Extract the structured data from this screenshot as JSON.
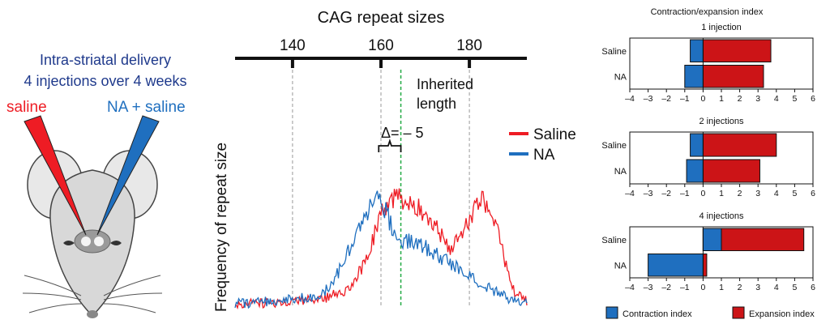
{
  "left_panel": {
    "title_line1": "Intra-striatal delivery",
    "title_line2": "4 injections over 4 weeks",
    "saline_label": "saline",
    "na_label": "NA + saline",
    "colors": {
      "title": "#1f3a8c",
      "saline": "#ee1c24",
      "na": "#1f6fbf"
    }
  },
  "chart_data": [
    {
      "type": "line",
      "title": "CAG repeat sizes",
      "ylabel": "Frequency of repeat size",
      "xlim": [
        127,
        193
      ],
      "ylim": [
        0,
        1
      ],
      "ticks": [
        140,
        160,
        180
      ],
      "tick_labels": [
        "140",
        "160",
        "180"
      ],
      "reference_lines": [
        {
          "x": 140,
          "color": "#999999"
        },
        {
          "x": 160,
          "color": "#999999"
        },
        {
          "x": 180,
          "color": "#999999"
        },
        {
          "x": 164.5,
          "color": "#22aa44",
          "label_line1": "Inherited",
          "label_line2": "length"
        }
      ],
      "delta_label": "Δ= – 5",
      "delta_range": [
        159.5,
        164.5
      ],
      "legend": {
        "placement": "top-right"
      },
      "series": [
        {
          "name": "Saline",
          "color": "#ee1c24",
          "x": [
            127,
            130,
            134,
            138,
            141,
            144,
            147,
            150,
            152,
            154,
            156,
            158,
            159,
            160,
            161,
            162,
            163,
            164,
            165,
            166,
            167,
            168,
            169,
            170,
            171,
            172,
            173,
            174,
            175,
            176,
            177,
            178,
            179,
            180,
            181,
            182,
            183,
            184,
            185,
            186,
            187,
            188,
            189,
            190,
            192,
            193
          ],
          "y": [
            0.02,
            0.03,
            0.03,
            0.04,
            0.05,
            0.05,
            0.06,
            0.09,
            0.12,
            0.18,
            0.28,
            0.42,
            0.52,
            0.6,
            0.66,
            0.68,
            0.7,
            0.72,
            0.71,
            0.7,
            0.69,
            0.66,
            0.64,
            0.61,
            0.58,
            0.55,
            0.5,
            0.46,
            0.41,
            0.39,
            0.42,
            0.46,
            0.52,
            0.58,
            0.64,
            0.68,
            0.69,
            0.68,
            0.63,
            0.55,
            0.43,
            0.31,
            0.2,
            0.11,
            0.06,
            0.04
          ]
        },
        {
          "name": "NA",
          "color": "#1f6fbf",
          "x": [
            127,
            130,
            134,
            138,
            141,
            144,
            147,
            149,
            151,
            153,
            155,
            157,
            158,
            159,
            160,
            161,
            162,
            163,
            164,
            165,
            166,
            167,
            168,
            169,
            170,
            172,
            174,
            176,
            178,
            180,
            182,
            184,
            186,
            188,
            190,
            193
          ],
          "y": [
            0.03,
            0.03,
            0.04,
            0.05,
            0.06,
            0.07,
            0.1,
            0.16,
            0.26,
            0.4,
            0.52,
            0.62,
            0.68,
            0.7,
            0.69,
            0.63,
            0.56,
            0.5,
            0.46,
            0.44,
            0.43,
            0.42,
            0.41,
            0.4,
            0.39,
            0.36,
            0.32,
            0.28,
            0.24,
            0.2,
            0.16,
            0.13,
            0.1,
            0.07,
            0.05,
            0.04
          ]
        }
      ]
    },
    {
      "type": "bar",
      "orientation": "horizontal",
      "title": "Contraction/expansion index",
      "xlim": [
        -4,
        6
      ],
      "ticks": [
        -4,
        -3,
        -2,
        -1,
        0,
        1,
        2,
        3,
        4,
        5,
        6
      ],
      "tick_labels": [
        "–4",
        "–3",
        "–2",
        "–1",
        "0",
        "1",
        "2",
        "3",
        "4",
        "5",
        "6"
      ],
      "categories": [
        "Saline",
        "NA"
      ],
      "panels": [
        {
          "title": "1 injection",
          "contraction": [
            -0.7,
            -1.0
          ],
          "expansion": [
            3.7,
            3.3
          ]
        },
        {
          "title": "2 injections",
          "contraction": [
            -0.7,
            -0.9
          ],
          "expansion": [
            4.0,
            3.1
          ]
        },
        {
          "title": "4 injections",
          "contraction": [
            1.0,
            -3.0
          ],
          "expansion": [
            5.5,
            0.2
          ]
        }
      ],
      "legend": {
        "placement": "bottom",
        "items": [
          {
            "name": "Contraction index",
            "color": "#1f6fbf"
          },
          {
            "name": "Expansion index",
            "color": "#cc1417"
          }
        ]
      }
    }
  ]
}
